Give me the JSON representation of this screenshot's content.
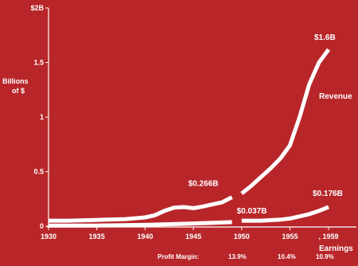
{
  "chart_data": {
    "type": "line",
    "ylabel": "Billions of $",
    "ylabel_lines": [
      "Billions",
      "of $"
    ],
    "xlim": [
      1930,
      1959
    ],
    "ylim": [
      0,
      2
    ],
    "x_ticks": [
      1930,
      1935,
      1940,
      1945,
      1950,
      1955,
      1959
    ],
    "x_tick_labels": [
      "1930",
      "1935",
      "1940",
      "1945",
      "1950",
      "1955",
      ", 1959"
    ],
    "y_ticks": [
      0,
      0.5,
      1,
      1.5,
      2
    ],
    "y_tick_labels": [
      "0",
      "0.5",
      "1",
      "1.5",
      "$2B"
    ],
    "grid": false,
    "series": [
      {
        "name": "Revenue",
        "segments": [
          {
            "x": [
              1930,
              1932,
              1934,
              1936,
              1938,
              1940,
              1941,
              1942,
              1943,
              1944,
              1945,
              1946,
              1947,
              1948,
              1949
            ],
            "y": [
              0.05,
              0.05,
              0.055,
              0.06,
              0.065,
              0.08,
              0.1,
              0.14,
              0.17,
              0.175,
              0.165,
              0.18,
              0.2,
              0.22,
              0.266
            ]
          },
          {
            "x": [
              1950,
              1951,
              1952,
              1953,
              1954,
              1955,
              1956,
              1957,
              1958,
              1959
            ],
            "y": [
              0.3,
              0.37,
              0.45,
              0.53,
              0.62,
              0.74,
              1.0,
              1.3,
              1.5,
              1.62
            ]
          }
        ]
      },
      {
        "name": "Earnings",
        "segments": [
          {
            "x": [
              1930,
              1935,
              1940,
              1945,
              1949
            ],
            "y": [
              0.005,
              0.006,
              0.012,
              0.025,
              0.037
            ]
          },
          {
            "x": [
              1950,
              1952,
              1954,
              1955,
              1956,
              1957,
              1958,
              1959
            ],
            "y": [
              0.05,
              0.05,
              0.06,
              0.07,
              0.09,
              0.11,
              0.14,
              0.176
            ]
          }
        ]
      }
    ],
    "annotations": [
      {
        "text": "$1.6B",
        "x": 1959,
        "y": 1.62
      },
      {
        "text": "$0.266B",
        "x": 1949,
        "y": 0.266
      },
      {
        "text": "$0.037B",
        "x": 1949,
        "y": 0.037
      },
      {
        "text": "$0.176B",
        "x": 1959,
        "y": 0.176
      }
    ],
    "footer": {
      "label": "Profit Margin:",
      "values": [
        "13.9%",
        "10.4%",
        "10.9%"
      ]
    }
  }
}
